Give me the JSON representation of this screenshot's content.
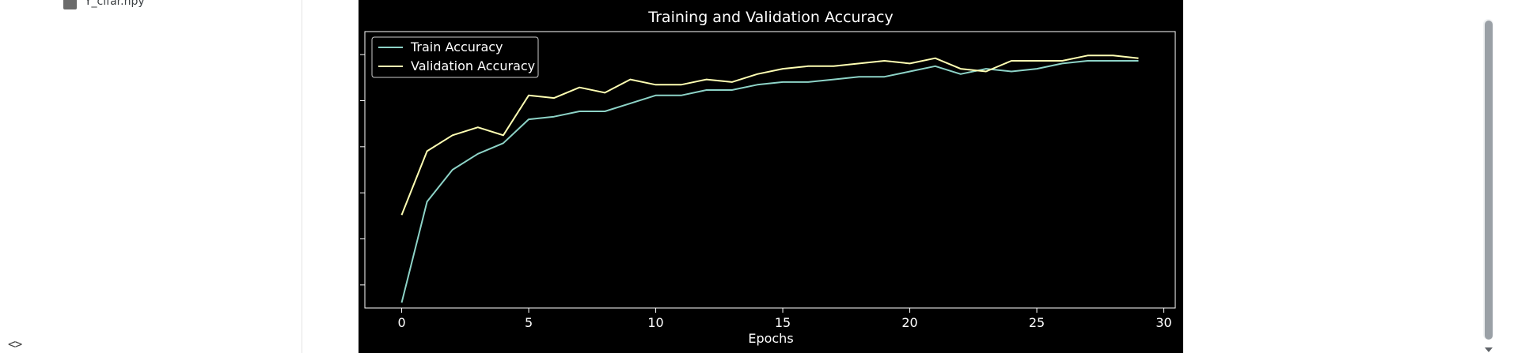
{
  "sidebar": {
    "file_name": "Y_cifar.npy",
    "toggle_label": "<>"
  },
  "chart_data": {
    "type": "line",
    "title": "Training and Validation Accuracy",
    "xlabel": "Epochs",
    "ylabel": "",
    "xlim": [
      -1.45,
      30.45
    ],
    "ylim": [
      -0.02,
      1.02
    ],
    "xticks": [
      0,
      5,
      10,
      15,
      20,
      25,
      30
    ],
    "ytick_count": 6,
    "grid": false,
    "legend_position": "top-left",
    "background": "#000000",
    "x": [
      0,
      1,
      2,
      3,
      4,
      5,
      6,
      7,
      8,
      9,
      10,
      11,
      12,
      13,
      14,
      15,
      16,
      17,
      18,
      19,
      20,
      21,
      22,
      23,
      24,
      25,
      26,
      27,
      28,
      29
    ],
    "series": [
      {
        "name": "Train Accuracy",
        "color": "#8dd3c7",
        "values": [
          0.0,
          0.38,
          0.5,
          0.56,
          0.6,
          0.69,
          0.7,
          0.72,
          0.72,
          0.75,
          0.78,
          0.78,
          0.8,
          0.8,
          0.82,
          0.83,
          0.83,
          0.84,
          0.85,
          0.85,
          0.87,
          0.89,
          0.86,
          0.88,
          0.87,
          0.88,
          0.9,
          0.91,
          0.91,
          0.91
        ]
      },
      {
        "name": "Validation Accuracy",
        "color": "#ffffb3",
        "values": [
          0.33,
          0.57,
          0.63,
          0.66,
          0.63,
          0.78,
          0.77,
          0.81,
          0.79,
          0.84,
          0.82,
          0.82,
          0.84,
          0.83,
          0.86,
          0.88,
          0.89,
          0.89,
          0.9,
          0.91,
          0.9,
          0.92,
          0.88,
          0.87,
          0.91,
          0.91,
          0.91,
          0.93,
          0.93,
          0.92
        ]
      }
    ]
  }
}
